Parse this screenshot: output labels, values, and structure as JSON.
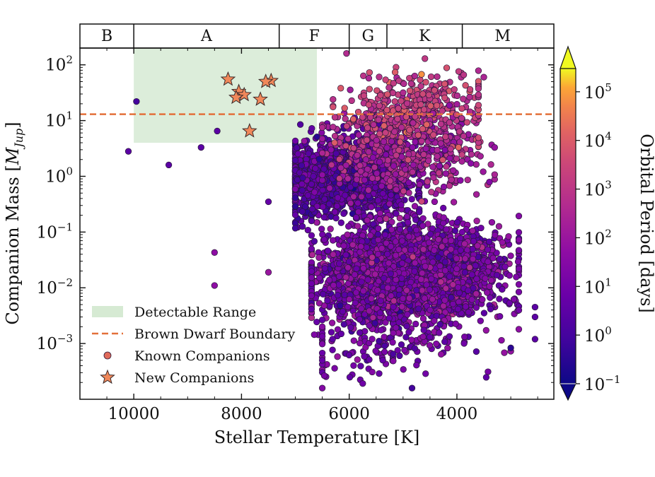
{
  "chart_data": {
    "type": "scatter",
    "x_axis": {
      "label": "Stellar Temperature [K]",
      "range": [
        11000,
        2200
      ],
      "inverted": true,
      "ticks": [
        10000,
        8000,
        6000,
        4000
      ],
      "tick_labels": [
        "10000",
        "8000",
        "6000",
        "4000"
      ]
    },
    "y_axis": {
      "label_prefix": "Companion Mass [",
      "label_symbol": "M",
      "label_subscript": "Jup",
      "label_suffix": "]",
      "scale": "log",
      "range": [
        0.0001,
        200
      ],
      "ticks": [
        0.001,
        0.01,
        0.1,
        1,
        10,
        100
      ],
      "tick_bases": [
        "10",
        "10",
        "10",
        "10",
        "10",
        "10"
      ],
      "tick_exponents": [
        "−3",
        "−2",
        "−1",
        "0",
        "1",
        "2"
      ]
    },
    "top_axis": {
      "spectral_classes": [
        {
          "label": "B",
          "t_min": 10000,
          "t_max": 11000
        },
        {
          "label": "A",
          "t_min": 7300,
          "t_max": 10000
        },
        {
          "label": "F",
          "t_min": 6000,
          "t_max": 7300
        },
        {
          "label": "G",
          "t_min": 5300,
          "t_max": 6000
        },
        {
          "label": "K",
          "t_min": 3900,
          "t_max": 5300
        },
        {
          "label": "M",
          "t_min": 2400,
          "t_max": 3900
        }
      ]
    },
    "detectable_range": {
      "t_min": 6600,
      "t_max": 10000,
      "m_min": 4,
      "m_max": 200
    },
    "brown_dwarf_boundary": 13,
    "colorbar": {
      "label": "Orbital Period [days]",
      "scale": "log",
      "range": [
        0.1,
        300000
      ],
      "colormap": "plasma",
      "ticks": [
        0.1,
        1,
        10,
        100,
        1000,
        10000,
        100000
      ],
      "tick_bases": [
        "10",
        "10",
        "10",
        "10",
        "10",
        "10",
        "10"
      ],
      "tick_exponents": [
        "−1",
        "0",
        "1",
        "2",
        "3",
        "4",
        "5"
      ]
    },
    "legend": {
      "placement": "lower-left",
      "entries": [
        {
          "label": "Detectable Range",
          "kind": "patch",
          "color": "#d6ead3"
        },
        {
          "label": "Brown Dwarf Boundary",
          "kind": "dashed-line",
          "color": "#e3703a"
        },
        {
          "label": "Known Companions",
          "kind": "circle",
          "color": "#e06a5a"
        },
        {
          "label": "New Companions",
          "kind": "star",
          "color": "#f0885a"
        }
      ]
    },
    "new_companions": [
      {
        "t": 8250,
        "mass": 55,
        "period": 20000
      },
      {
        "t": 7450,
        "mass": 52,
        "period": 20000
      },
      {
        "t": 7550,
        "mass": 50,
        "period": 20000
      },
      {
        "t": 8050,
        "mass": 33,
        "period": 20000
      },
      {
        "t": 7950,
        "mass": 29,
        "period": 20000
      },
      {
        "t": 8100,
        "mass": 26,
        "period": 20000
      },
      {
        "t": 7650,
        "mass": 24,
        "period": 20000
      },
      {
        "t": 7850,
        "mass": 6.5,
        "period": 20000
      }
    ],
    "known_companions_isolated": [
      {
        "t": 10100,
        "mass": 2.8,
        "period": 3
      },
      {
        "t": 9950,
        "mass": 22,
        "period": 1
      },
      {
        "t": 9350,
        "mass": 1.6,
        "period": 3
      },
      {
        "t": 8750,
        "mass": 3.3,
        "period": 3
      },
      {
        "t": 8450,
        "mass": 6.5,
        "period": 3
      },
      {
        "t": 8500,
        "mass": 0.043,
        "period": 50
      },
      {
        "t": 8500,
        "mass": 0.011,
        "period": 50
      },
      {
        "t": 7500,
        "mass": 0.019,
        "period": 100
      },
      {
        "t": 7500,
        "mass": 0.35,
        "period": 5
      },
      {
        "t": 6050,
        "mass": 160,
        "period": 500
      },
      {
        "t": 3500,
        "mass": 60,
        "period": 300
      },
      {
        "t": 2550,
        "mass": 0.0045,
        "period": 3
      },
      {
        "t": 2550,
        "mass": 0.003,
        "period": 3
      },
      {
        "t": 2550,
        "mass": 0.0012,
        "period": 3
      }
    ],
    "known_companions_population": {
      "approximate_count": 5000,
      "t_range": [
        2700,
        7000
      ],
      "mass_range": [
        0.0002,
        160
      ],
      "period_range": [
        0.3,
        50000
      ],
      "note_hot_jupiter_concentration": {
        "t_range": [
          5200,
          6700
        ],
        "mass_range": [
          0.2,
          3
        ]
      },
      "note_super_earth_concentration": {
        "t_range": [
          3000,
          6200
        ],
        "mass_range": [
          0.003,
          0.06
        ]
      },
      "note_long_period_brown_dwarfs": {
        "t_range": [
          3600,
          6200
        ],
        "mass_range": [
          3,
          80
        ]
      }
    }
  }
}
